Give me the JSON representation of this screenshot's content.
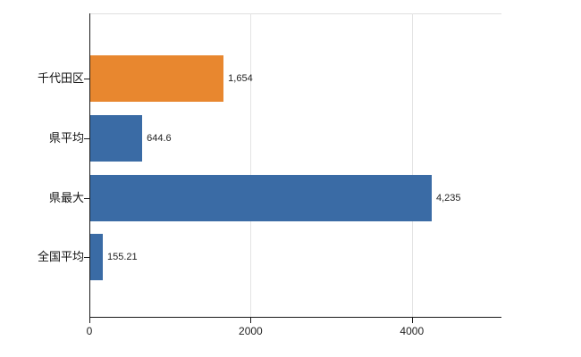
{
  "chart_data": {
    "type": "bar",
    "orientation": "horizontal",
    "title": "",
    "xlabel": "",
    "ylabel": "",
    "categories": [
      "千代田区",
      "県平均",
      "県最大",
      "全国平均"
    ],
    "values": [
      1654,
      644.6,
      4235,
      155.21
    ],
    "value_labels": [
      "1,654",
      "644.6",
      "4,235",
      "155.21"
    ],
    "bar_colors": [
      "#E8872F",
      "#3A6BA5",
      "#3A6BA5",
      "#3A6BA5"
    ],
    "xlim": [
      0,
      5100
    ],
    "x_ticks": [
      0,
      2000,
      4000
    ],
    "x_tick_labels": [
      "0",
      "2000",
      "4000"
    ],
    "grid": true,
    "legend": "none",
    "background_color": "#ffffff"
  }
}
